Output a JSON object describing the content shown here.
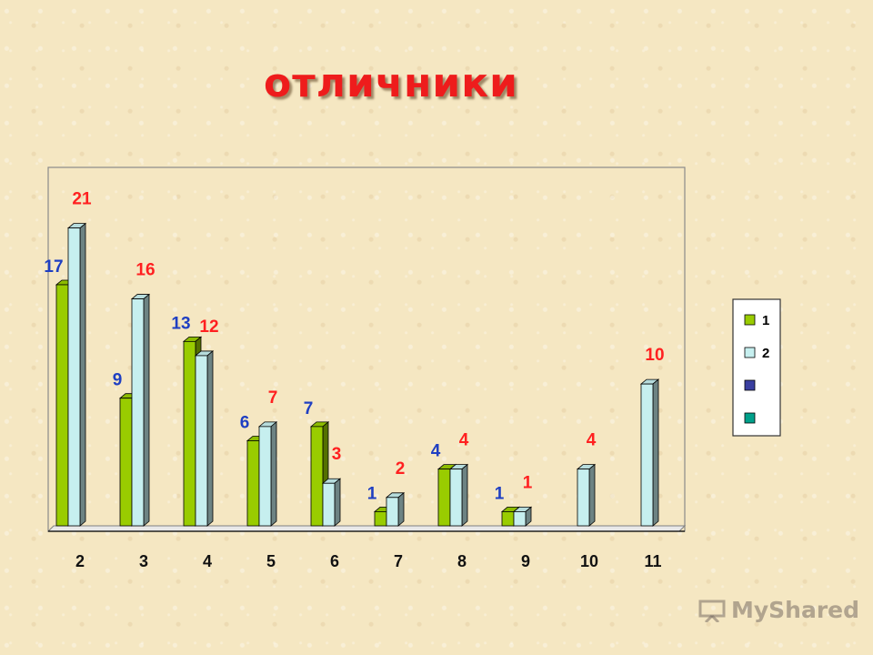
{
  "slide": {
    "title": "отличники",
    "logo_text": "MyShared"
  },
  "chart_data": {
    "type": "bar",
    "categories": [
      "2",
      "3",
      "4",
      "5",
      "6",
      "7",
      "8",
      "9",
      "10",
      "11"
    ],
    "series": [
      {
        "name": "1",
        "values": [
          17,
          9,
          13,
          6,
          7,
          1,
          4,
          1,
          0,
          0
        ],
        "color": "#99cc00",
        "label_color": "#1f3fc2"
      },
      {
        "name": "2",
        "values": [
          21,
          16,
          12,
          7,
          3,
          2,
          4,
          1,
          4,
          10
        ],
        "color": "#c6efef",
        "label_color": "#ff2020"
      }
    ],
    "legend_extra": [
      {
        "name": "",
        "color": "#3a3fa0"
      },
      {
        "name": "",
        "color": "#00a08a"
      }
    ],
    "ylim": [
      0,
      25
    ],
    "grid": false,
    "legend_position": "right",
    "title": "",
    "xlabel": "",
    "ylabel": ""
  }
}
